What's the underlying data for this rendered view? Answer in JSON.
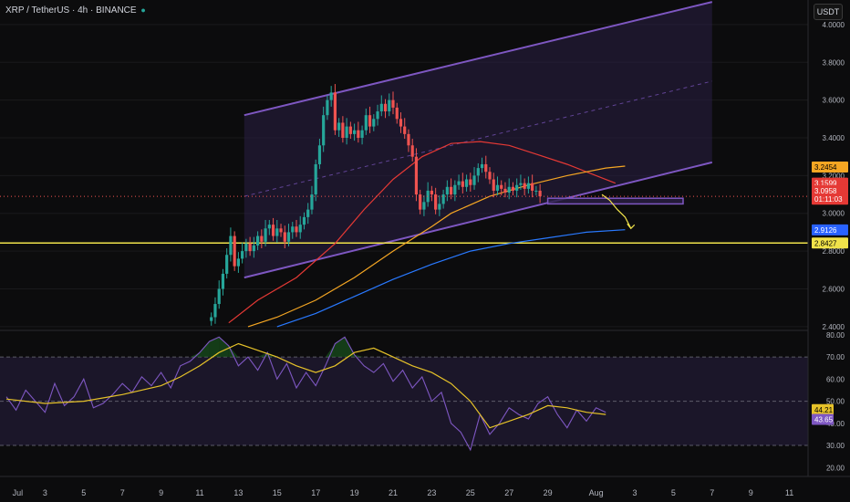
{
  "header": {
    "symbol": "XRP / TetherUS · 4h · BINANCE",
    "currency_button": "USDT"
  },
  "colors": {
    "background": "#0c0c0d",
    "channel_line": "#7e57c2",
    "channel_fill": "#2a1f45",
    "candle_up": "#26a69a",
    "candle_down": "#ef5350",
    "ma_red": "#e53935",
    "ma_orange": "#f5a623",
    "ma_blue": "#2979ff",
    "rsi": "#7e57c2",
    "rsi_ma": "#e6c229",
    "support": "#f0e24a"
  },
  "chart_data": [
    {
      "type": "candlestick",
      "symbol": "XRP / TetherUS",
      "timeframe": "4h",
      "exchange": "BINANCE",
      "y_axis_labels": [
        "4.0000",
        "3.8000",
        "3.6000",
        "3.4000",
        "3.2000",
        "3.0000",
        "2.8000",
        "2.6000",
        "2.4000"
      ],
      "ylim": [
        2.38,
        4.13
      ],
      "x_axis_labels": [
        "Jul",
        "3",
        "5",
        "7",
        "9",
        "11",
        "13",
        "15",
        "17",
        "19",
        "21",
        "23",
        "25",
        "27",
        "29",
        "Aug",
        "3",
        "5",
        "7",
        "9",
        "11"
      ],
      "price_labels": [
        {
          "value": "3.2454",
          "color": "#f5a623"
        },
        {
          "value": "3.1599",
          "color": "#e53935"
        },
        {
          "value": "3.0958",
          "color": "#e53935"
        },
        {
          "value": "01:11:03",
          "color": "#e53935"
        },
        {
          "value": "2.9126",
          "color": "#2962ff"
        },
        {
          "value": "2.8427",
          "color": "#f0e24a"
        }
      ],
      "series": [
        {
          "name": "",
          "type": "ohlc",
          "day": [
            10.6,
            10.8,
            11.0,
            11.2,
            11.4,
            11.6,
            11.8,
            12.0,
            12.2,
            12.4,
            12.6,
            12.8,
            13.0,
            13.2,
            13.4,
            13.6,
            13.8,
            14.0,
            14.2,
            14.4,
            14.6,
            14.8,
            15.0,
            15.2,
            15.4,
            15.6,
            15.8,
            16.0,
            16.2,
            16.4,
            16.6,
            16.8,
            17.0,
            17.2,
            17.4,
            17.6,
            17.8,
            18.0,
            18.2,
            18.4,
            18.6,
            18.8,
            19.0,
            19.2,
            19.4,
            19.6,
            19.8,
            20.0,
            20.2,
            20.4,
            20.6,
            20.8,
            21.0,
            21.2,
            21.4,
            21.6,
            21.8,
            22.0,
            22.2,
            22.4,
            22.6,
            22.8,
            23.0,
            23.2,
            23.4,
            23.6,
            23.8,
            24.0,
            24.2,
            24.4,
            24.6,
            24.8,
            25.0,
            25.2,
            25.4,
            25.6,
            25.8,
            26.0,
            26.2,
            26.4,
            26.6,
            26.8,
            27.0,
            27.2,
            27.4,
            27.6,
            27.8,
            28.0,
            28.2,
            28.4,
            28.6,
            28.8,
            29.0,
            29.2,
            29.4,
            29.6,
            29.8,
            30.0,
            30.2,
            30.4,
            30.6,
            30.8
          ],
          "close": [
            2.45,
            2.52,
            2.6,
            2.68,
            2.78,
            2.88,
            2.72,
            2.76,
            2.8,
            2.84,
            2.8,
            2.83,
            2.88,
            2.85,
            2.92,
            2.94,
            2.88,
            2.92,
            2.9,
            2.85,
            2.9,
            2.93,
            2.9,
            2.94,
            2.98,
            3.02,
            3.1,
            3.26,
            3.36,
            3.52,
            3.6,
            3.64,
            3.44,
            3.48,
            3.4,
            3.46,
            3.42,
            3.44,
            3.4,
            3.44,
            3.52,
            3.46,
            3.5,
            3.54,
            3.58,
            3.54,
            3.6,
            3.56,
            3.5,
            3.46,
            3.42,
            3.36,
            3.3,
            3.1,
            3.02,
            3.06,
            3.12,
            3.1,
            3.02,
            3.05,
            3.1,
            3.14,
            3.1,
            3.15,
            3.17,
            3.14,
            3.18,
            3.15,
            3.2,
            3.24,
            3.26,
            3.22,
            3.18,
            3.12,
            3.15,
            3.13,
            3.11,
            3.14,
            3.12,
            3.15,
            3.16,
            3.13,
            3.16,
            3.12,
            3.12,
            3.09
          ]
        },
        {
          "name": "",
          "type": "line",
          "points": "ma_red"
        },
        {
          "name": "",
          "type": "line",
          "points": "ma_orange"
        },
        {
          "name": "",
          "type": "line",
          "points": "ma_blue"
        }
      ],
      "ma_red": [
        [
          11.5,
          2.42
        ],
        [
          13,
          2.54
        ],
        [
          15,
          2.66
        ],
        [
          17,
          2.84
        ],
        [
          18.5,
          3.02
        ],
        [
          20,
          3.18
        ],
        [
          21.5,
          3.3
        ],
        [
          23,
          3.37
        ],
        [
          24.5,
          3.38
        ],
        [
          26,
          3.36
        ],
        [
          27.5,
          3.31
        ],
        [
          29,
          3.26
        ],
        [
          30.5,
          3.2
        ],
        [
          31.5,
          3.16
        ]
      ],
      "ma_orange": [
        [
          12.5,
          2.4
        ],
        [
          14,
          2.45
        ],
        [
          16,
          2.54
        ],
        [
          18,
          2.66
        ],
        [
          20,
          2.8
        ],
        [
          22,
          2.93
        ],
        [
          23,
          3.0
        ],
        [
          25,
          3.09
        ],
        [
          27,
          3.15
        ],
        [
          29,
          3.2
        ],
        [
          31,
          3.24
        ],
        [
          32,
          3.25
        ]
      ],
      "ma_blue": [
        [
          14,
          2.4
        ],
        [
          16,
          2.47
        ],
        [
          18,
          2.56
        ],
        [
          20,
          2.65
        ],
        [
          22,
          2.73
        ],
        [
          24,
          2.8
        ],
        [
          26,
          2.84
        ],
        [
          28,
          2.87
        ],
        [
          30,
          2.9
        ],
        [
          32,
          2.913
        ]
      ],
      "channel": {
        "lower": [
          [
            12.3,
            2.66
          ],
          [
            36.5,
            3.27
          ]
        ],
        "upper": [
          [
            12.3,
            3.52
          ],
          [
            36.5,
            4.12
          ]
        ],
        "mid": [
          [
            12.3,
            3.09
          ],
          [
            36.5,
            3.7
          ]
        ]
      },
      "support_level": 2.8427,
      "box": {
        "from_day": 28,
        "to_day": 35,
        "low": 3.05,
        "high": 3.08
      },
      "projection": [
        [
          30.8,
          3.1
        ],
        [
          31.2,
          3.07
        ],
        [
          31.6,
          3.02
        ],
        [
          32.0,
          2.98
        ],
        [
          32.3,
          2.92
        ]
      ]
    },
    {
      "type": "line",
      "indicator": "RSI",
      "ylim": [
        16,
        82
      ],
      "y_axis_labels": [
        "80.00",
        "70.00",
        "60.00",
        "50.00",
        "40.00",
        "30.00",
        "20.00"
      ],
      "levels": [
        70,
        50,
        30
      ],
      "value_labels": [
        {
          "value": "44.21",
          "color": "#e6c229"
        },
        {
          "value": "43.65",
          "color": "#7e57c2"
        }
      ],
      "series": [
        {
          "name": "",
          "x": [
            0,
            0.5,
            1,
            1.5,
            2,
            2.5,
            3,
            3.5,
            4,
            4.5,
            5,
            5.5,
            6,
            6.5,
            7,
            7.5,
            8,
            8.5,
            9,
            9.5,
            10,
            10.5,
            11,
            11.5,
            12,
            12.5,
            13,
            13.5,
            14,
            14.5,
            15,
            15.5,
            16,
            16.5,
            17,
            17.5,
            18,
            18.5,
            19,
            19.5,
            20,
            20.5,
            21,
            21.5,
            22,
            22.5,
            23,
            23.5,
            24,
            24.5,
            25,
            25.5,
            26,
            26.5,
            27,
            27.5,
            28,
            28.5,
            29,
            29.5,
            30,
            30.5,
            31
          ],
          "y": [
            52,
            46,
            55,
            50,
            45,
            58,
            48,
            52,
            60,
            47,
            49,
            53,
            58,
            54,
            61,
            57,
            63,
            56,
            66,
            68,
            72,
            77,
            79,
            75,
            66,
            70,
            64,
            72,
            60,
            67,
            56,
            63,
            57,
            66,
            76,
            79,
            71,
            66,
            63,
            67,
            59,
            64,
            56,
            61,
            50,
            54,
            40,
            36,
            28,
            44,
            35,
            40,
            47,
            44,
            42,
            49,
            52,
            44,
            38,
            46,
            41,
            47,
            45
          ]
        },
        {
          "name": "",
          "x": [
            0,
            2,
            4,
            6,
            8,
            9,
            10,
            11,
            12,
            13,
            14,
            15,
            16,
            17,
            18,
            19,
            20,
            21,
            22,
            23,
            24,
            25,
            26,
            27,
            28,
            29,
            30,
            31
          ],
          "y": [
            51,
            49,
            50,
            53,
            57,
            61,
            66,
            72,
            76,
            73,
            70,
            66,
            63,
            66,
            72,
            74,
            70,
            66,
            63,
            58,
            50,
            38,
            41,
            44,
            48,
            47,
            45,
            44
          ]
        }
      ]
    }
  ]
}
